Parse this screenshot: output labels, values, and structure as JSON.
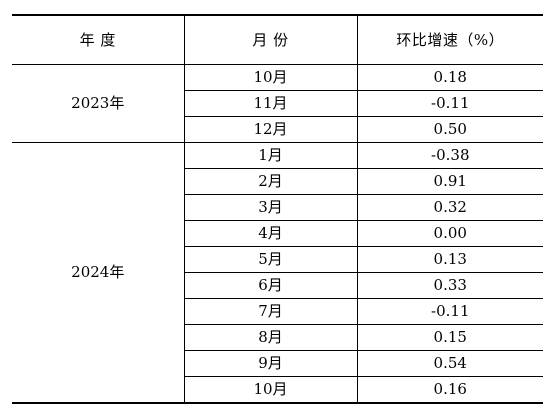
{
  "table": {
    "headers": {
      "year": "年 度",
      "month": "月 份",
      "rate": "环比增速（%）"
    },
    "groups": [
      {
        "year": "2023年",
        "rows": [
          {
            "month": "10月",
            "value": "0.18"
          },
          {
            "month": "11月",
            "value": "-0.11"
          },
          {
            "month": "12月",
            "value": "0.50"
          }
        ]
      },
      {
        "year": "2024年",
        "rows": [
          {
            "month": "1月",
            "value": "-0.38"
          },
          {
            "month": "2月",
            "value": "0.91"
          },
          {
            "month": "3月",
            "value": "0.32"
          },
          {
            "month": "4月",
            "value": "0.00"
          },
          {
            "month": "5月",
            "value": "0.13"
          },
          {
            "month": "6月",
            "value": "0.33"
          },
          {
            "month": "7月",
            "value": "-0.11"
          },
          {
            "month": "8月",
            "value": "0.15"
          },
          {
            "month": "9月",
            "value": "0.54"
          },
          {
            "month": "10月",
            "value": "0.16"
          }
        ]
      }
    ]
  }
}
